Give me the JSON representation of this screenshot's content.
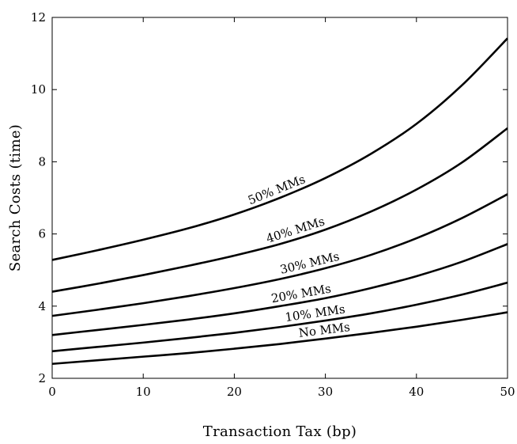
{
  "chart_data": {
    "type": "line",
    "title": "",
    "xlabel": "Transaction Tax (bp)",
    "ylabel": "Search Costs (time)",
    "xlim": [
      0,
      50
    ],
    "ylim": [
      2,
      12
    ],
    "xticks": [
      "0",
      "10",
      "20",
      "30",
      "40",
      "50"
    ],
    "yticks": [
      "2",
      "4",
      "6",
      "8",
      "10",
      "12"
    ],
    "grid": false,
    "legend": "none",
    "x": [
      0,
      5,
      10,
      15,
      20,
      25,
      30,
      35,
      40,
      45,
      50
    ],
    "series": [
      {
        "name": "No MMs",
        "values": [
          2.4,
          2.5,
          2.6,
          2.7,
          2.82,
          2.95,
          3.1,
          3.26,
          3.43,
          3.62,
          3.83
        ]
      },
      {
        "name": "10% MMs",
        "values": [
          2.75,
          2.87,
          2.99,
          3.12,
          3.26,
          3.42,
          3.6,
          3.8,
          4.04,
          4.32,
          4.65
        ]
      },
      {
        "name": "20% MMs",
        "values": [
          3.2,
          3.34,
          3.48,
          3.63,
          3.8,
          4.0,
          4.22,
          4.5,
          4.83,
          5.23,
          5.72
        ]
      },
      {
        "name": "30% MMs",
        "values": [
          3.73,
          3.9,
          4.08,
          4.28,
          4.5,
          4.75,
          5.05,
          5.42,
          5.88,
          6.44,
          7.1
        ]
      },
      {
        "name": "40% MMs",
        "values": [
          4.4,
          4.62,
          4.86,
          5.12,
          5.4,
          5.72,
          6.12,
          6.62,
          7.23,
          7.98,
          8.93
        ]
      },
      {
        "name": "50% MMs",
        "values": [
          5.28,
          5.55,
          5.84,
          6.16,
          6.54,
          7.0,
          7.55,
          8.22,
          9.05,
          10.12,
          11.42
        ]
      }
    ],
    "annotations": [
      {
        "text": "No MMs",
        "series": "No MMs",
        "x": 30
      },
      {
        "text": "10% MMs",
        "series": "10% MMs",
        "x": 29
      },
      {
        "text": "20% MMs",
        "series": "20% MMs",
        "x": 27.5
      },
      {
        "text": "30% MMs",
        "series": "30% MMs",
        "x": 28.5
      },
      {
        "text": "40% MMs",
        "series": "40% MMs",
        "x": 27
      },
      {
        "text": "50% MMs",
        "series": "50% MMs",
        "x": 25
      }
    ]
  }
}
